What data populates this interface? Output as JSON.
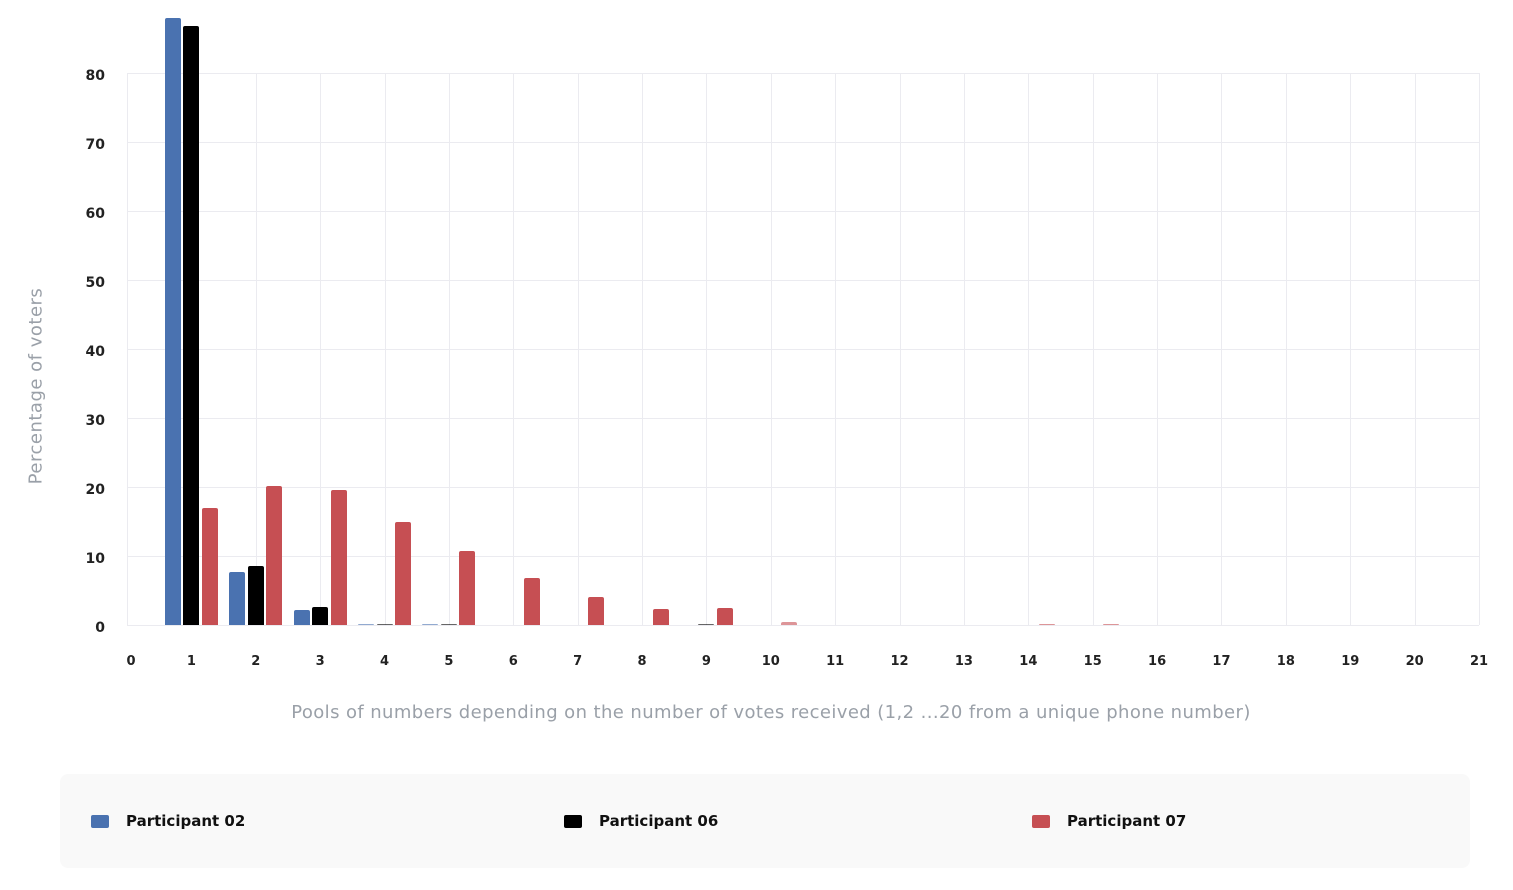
{
  "chart_data": {
    "type": "bar",
    "title": "",
    "xlabel": "Pools of numbers depending on the number of votes received (1,2 ...20 from a unique  phone number)",
    "ylabel": "Percentage of voters",
    "x_ticks": [
      "0",
      "1",
      "2",
      "3",
      "4",
      "5",
      "6",
      "7",
      "8",
      "9",
      "10",
      "11",
      "12",
      "13",
      "14",
      "15",
      "16",
      "17",
      "18",
      "19",
      "20",
      "21"
    ],
    "y_ticks": [
      "0",
      "10",
      "20",
      "30",
      "40",
      "50",
      "60",
      "70",
      "80"
    ],
    "ylim": [
      0,
      88
    ],
    "xlim": [
      0,
      21
    ],
    "grid": true,
    "legend_position": "bottom",
    "categories": [
      "1",
      "2",
      "3",
      "4",
      "5",
      "6",
      "7",
      "8",
      "9",
      "10",
      "11",
      "12",
      "13",
      "14",
      "15",
      "16",
      "17",
      "18",
      "19",
      "20"
    ],
    "series": [
      {
        "name": "Participant 02",
        "color": "#4a72b0",
        "values": [
          88.0,
          7.7,
          2.2,
          0.1,
          0.1,
          0,
          0,
          0,
          0,
          0,
          0,
          0,
          0,
          0,
          0,
          0,
          0,
          0,
          0,
          0
        ]
      },
      {
        "name": "Participant 06",
        "color": "#000000",
        "values": [
          86.8,
          8.6,
          2.6,
          0.1,
          0.1,
          0,
          0,
          0,
          0.1,
          0,
          0,
          0,
          0,
          0,
          0,
          0,
          0,
          0,
          0,
          0
        ]
      },
      {
        "name": "Participant 07",
        "color": "#c64f53",
        "values": [
          17.0,
          20.2,
          19.5,
          15.0,
          10.7,
          6.8,
          4.0,
          2.3,
          2.5,
          0.4,
          0,
          0,
          0,
          0.1,
          0.1,
          0,
          0,
          0,
          0,
          0
        ]
      }
    ]
  },
  "legend": {
    "items": [
      {
        "label": "Participant 02",
        "color": "#4a72b0"
      },
      {
        "label": "Participant 06",
        "color": "#000000"
      },
      {
        "label": "Participant 07",
        "color": "#c64f53"
      }
    ]
  }
}
